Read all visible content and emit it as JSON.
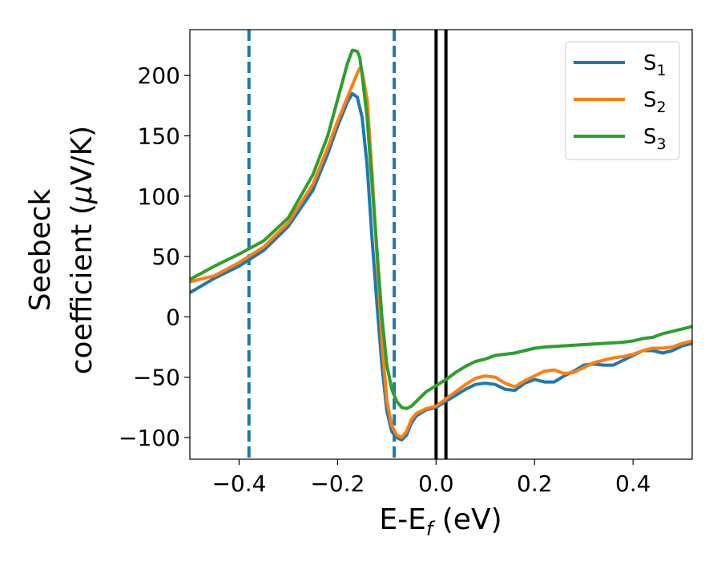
{
  "chart_data": {
    "type": "line",
    "title": "",
    "xlabel": "E-Ef (eV)",
    "xlabel_main": "E-E",
    "xlabel_sub": "f",
    "xlabel_unit": " (eV)",
    "ylabel_line1": "Seebeck",
    "ylabel_line2_pre": "coefficient  (",
    "ylabel_line2_mu": "μ",
    "ylabel_line2_post": "V/K)",
    "xlim": [
      -0.5,
      0.52
    ],
    "ylim": [
      -118,
      238
    ],
    "xticks": [
      -0.4,
      -0.2,
      0.0,
      0.2,
      0.4
    ],
    "xtick_labels": [
      "−0.4",
      "−0.2",
      "0.0",
      "0.2",
      "0.4"
    ],
    "yticks": [
      -100,
      -50,
      0,
      50,
      100,
      150,
      200
    ],
    "ytick_labels": [
      "−100",
      "−50",
      "0",
      "50",
      "100",
      "150",
      "200"
    ],
    "legend_position": "top-right",
    "grid": false,
    "vlines": [
      {
        "x": -0.38,
        "style": "dashed",
        "color": "#1f77b4"
      },
      {
        "x": -0.085,
        "style": "dashed",
        "color": "#1f77b4"
      },
      {
        "x": 0.0,
        "style": "solid",
        "color": "#000000"
      },
      {
        "x": 0.02,
        "style": "solid",
        "color": "#000000"
      }
    ],
    "series": [
      {
        "name": "S1",
        "label_main": "S",
        "label_sub": "1",
        "color": "#1f77b4",
        "points": [
          [
            -0.5,
            20
          ],
          [
            -0.45,
            32
          ],
          [
            -0.4,
            42
          ],
          [
            -0.35,
            55
          ],
          [
            -0.3,
            75
          ],
          [
            -0.25,
            105
          ],
          [
            -0.22,
            135
          ],
          [
            -0.2,
            158
          ],
          [
            -0.18,
            178
          ],
          [
            -0.17,
            185
          ],
          [
            -0.16,
            182
          ],
          [
            -0.15,
            165
          ],
          [
            -0.14,
            125
          ],
          [
            -0.13,
            65
          ],
          [
            -0.12,
            10
          ],
          [
            -0.11,
            -40
          ],
          [
            -0.1,
            -78
          ],
          [
            -0.09,
            -95
          ],
          [
            -0.08,
            -100
          ],
          [
            -0.07,
            -102
          ],
          [
            -0.06,
            -98
          ],
          [
            -0.05,
            -88
          ],
          [
            -0.04,
            -82
          ],
          [
            -0.02,
            -77
          ],
          [
            0.0,
            -75
          ],
          [
            0.02,
            -70
          ],
          [
            0.04,
            -65
          ],
          [
            0.06,
            -60
          ],
          [
            0.08,
            -56
          ],
          [
            0.1,
            -55
          ],
          [
            0.12,
            -56
          ],
          [
            0.14,
            -60
          ],
          [
            0.16,
            -61
          ],
          [
            0.18,
            -55
          ],
          [
            0.2,
            -52
          ],
          [
            0.22,
            -54
          ],
          [
            0.24,
            -54
          ],
          [
            0.26,
            -49
          ],
          [
            0.28,
            -45
          ],
          [
            0.3,
            -40
          ],
          [
            0.32,
            -39
          ],
          [
            0.34,
            -40
          ],
          [
            0.36,
            -40
          ],
          [
            0.38,
            -36
          ],
          [
            0.4,
            -32
          ],
          [
            0.42,
            -28
          ],
          [
            0.44,
            -28
          ],
          [
            0.46,
            -30
          ],
          [
            0.48,
            -28
          ],
          [
            0.5,
            -24
          ],
          [
            0.52,
            -22
          ]
        ]
      },
      {
        "name": "S2",
        "label_main": "S",
        "label_sub": "2",
        "color": "#ff7f0e",
        "points": [
          [
            -0.5,
            29
          ],
          [
            -0.45,
            34
          ],
          [
            -0.4,
            45
          ],
          [
            -0.35,
            58
          ],
          [
            -0.3,
            78
          ],
          [
            -0.25,
            110
          ],
          [
            -0.22,
            140
          ],
          [
            -0.2,
            162
          ],
          [
            -0.18,
            182
          ],
          [
            -0.17,
            192
          ],
          [
            -0.16,
            202
          ],
          [
            -0.155,
            206
          ],
          [
            -0.15,
            203
          ],
          [
            -0.14,
            180
          ],
          [
            -0.13,
            120
          ],
          [
            -0.12,
            50
          ],
          [
            -0.11,
            -20
          ],
          [
            -0.1,
            -70
          ],
          [
            -0.09,
            -90
          ],
          [
            -0.08,
            -98
          ],
          [
            -0.07,
            -100
          ],
          [
            -0.06,
            -95
          ],
          [
            -0.05,
            -85
          ],
          [
            -0.04,
            -80
          ],
          [
            -0.02,
            -76
          ],
          [
            0.0,
            -74
          ],
          [
            0.02,
            -68
          ],
          [
            0.04,
            -62
          ],
          [
            0.06,
            -56
          ],
          [
            0.08,
            -51
          ],
          [
            0.1,
            -49
          ],
          [
            0.12,
            -50
          ],
          [
            0.14,
            -55
          ],
          [
            0.16,
            -58
          ],
          [
            0.18,
            -53
          ],
          [
            0.2,
            -49
          ],
          [
            0.22,
            -45
          ],
          [
            0.24,
            -44
          ],
          [
            0.26,
            -47
          ],
          [
            0.28,
            -46
          ],
          [
            0.3,
            -42
          ],
          [
            0.32,
            -38
          ],
          [
            0.34,
            -36
          ],
          [
            0.36,
            -34
          ],
          [
            0.38,
            -33
          ],
          [
            0.4,
            -31
          ],
          [
            0.42,
            -28
          ],
          [
            0.44,
            -26
          ],
          [
            0.46,
            -26
          ],
          [
            0.48,
            -25
          ],
          [
            0.5,
            -22
          ],
          [
            0.52,
            -20
          ]
        ]
      },
      {
        "name": "S3",
        "label_main": "S",
        "label_sub": "3",
        "color": "#2ca02c",
        "points": [
          [
            -0.5,
            31
          ],
          [
            -0.45,
            42
          ],
          [
            -0.4,
            52
          ],
          [
            -0.35,
            63
          ],
          [
            -0.3,
            82
          ],
          [
            -0.25,
            118
          ],
          [
            -0.22,
            150
          ],
          [
            -0.2,
            180
          ],
          [
            -0.18,
            210
          ],
          [
            -0.17,
            221
          ],
          [
            -0.16,
            220
          ],
          [
            -0.155,
            215
          ],
          [
            -0.15,
            200
          ],
          [
            -0.14,
            165
          ],
          [
            -0.13,
            110
          ],
          [
            -0.12,
            55
          ],
          [
            -0.11,
            0
          ],
          [
            -0.1,
            -40
          ],
          [
            -0.09,
            -60
          ],
          [
            -0.08,
            -70
          ],
          [
            -0.07,
            -75
          ],
          [
            -0.06,
            -76
          ],
          [
            -0.05,
            -74
          ],
          [
            -0.04,
            -70
          ],
          [
            -0.02,
            -62
          ],
          [
            0.0,
            -57
          ],
          [
            0.02,
            -52
          ],
          [
            0.04,
            -46
          ],
          [
            0.06,
            -41
          ],
          [
            0.08,
            -37
          ],
          [
            0.1,
            -35
          ],
          [
            0.12,
            -32
          ],
          [
            0.14,
            -31
          ],
          [
            0.16,
            -30
          ],
          [
            0.18,
            -28
          ],
          [
            0.2,
            -26
          ],
          [
            0.22,
            -25
          ],
          [
            0.26,
            -24
          ],
          [
            0.3,
            -23
          ],
          [
            0.34,
            -22
          ],
          [
            0.38,
            -21
          ],
          [
            0.4,
            -20
          ],
          [
            0.42,
            -18
          ],
          [
            0.44,
            -17
          ],
          [
            0.46,
            -14
          ],
          [
            0.48,
            -12
          ],
          [
            0.5,
            -10
          ],
          [
            0.52,
            -8
          ]
        ]
      }
    ]
  }
}
